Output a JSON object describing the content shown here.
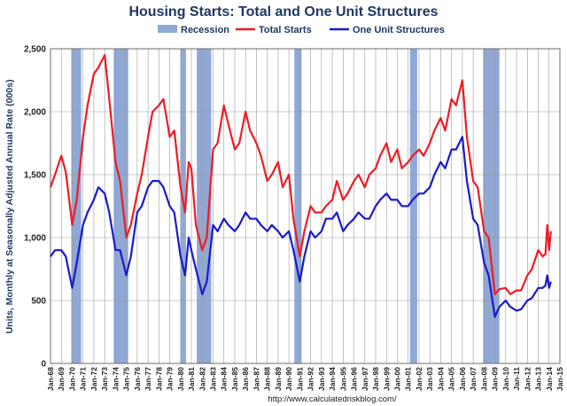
{
  "chart_data": {
    "type": "line",
    "title": "Housing Starts: Total and One Unit Structures",
    "ylabel": "Units, Monthly at Seasonally Adjusted Annual Rate (000s)",
    "xlabel": "",
    "source": "http://www.calculatedriskblog.com/",
    "ylim": [
      0,
      2500
    ],
    "yticks": [
      "0",
      "500",
      "1,000",
      "1,500",
      "2,000",
      "2,500"
    ],
    "xlim": [
      "1968-01",
      "2015-01"
    ],
    "xticks": [
      "Jan-68",
      "Jan-69",
      "Jan-70",
      "Jan-71",
      "Jan-72",
      "Jan-73",
      "Jan-74",
      "Jan-75",
      "Jan-76",
      "Jan-77",
      "Jan-78",
      "Jan-79",
      "Jan-80",
      "Jan-81",
      "Jan-82",
      "Jan-83",
      "Jan-84",
      "Jan-85",
      "Jan-86",
      "Jan-87",
      "Jan-88",
      "Jan-89",
      "Jan-90",
      "Jan-91",
      "Jan-92",
      "Jan-93",
      "Jan-94",
      "Jan-95",
      "Jan-96",
      "Jan-97",
      "Jan-98",
      "Jan-99",
      "Jan-00",
      "Jan-01",
      "Jan-02",
      "Jan-03",
      "Jan-04",
      "Jan-05",
      "Jan-06",
      "Jan-07",
      "Jan-08",
      "Jan-09",
      "Jan-10",
      "Jan-11",
      "Jan-12",
      "Jan-13",
      "Jan-14",
      "Jan-15"
    ],
    "grid": true,
    "legend_position": "top",
    "legend": [
      {
        "label": "Recession",
        "color": "#8fa8d6",
        "kind": "box"
      },
      {
        "label": "Total Starts",
        "color": "#ee1c25",
        "kind": "line"
      },
      {
        "label": "One Unit Structures",
        "color": "#1a1acc",
        "kind": "line"
      }
    ],
    "recessions": [
      {
        "start": "1969-12",
        "end": "1970-11"
      },
      {
        "start": "1973-11",
        "end": "1975-03"
      },
      {
        "start": "1980-01",
        "end": "1980-07"
      },
      {
        "start": "1981-07",
        "end": "1982-11"
      },
      {
        "start": "1990-07",
        "end": "1991-03"
      },
      {
        "start": "2001-03",
        "end": "2001-11"
      },
      {
        "start": "2007-12",
        "end": "2009-06"
      }
    ],
    "series": [
      {
        "name": "Total Starts",
        "color": "#ee1c25",
        "points": [
          [
            "1968-01",
            1400
          ],
          [
            "1968-06",
            1500
          ],
          [
            "1969-01",
            1650
          ],
          [
            "1969-06",
            1520
          ],
          [
            "1970-01",
            1100
          ],
          [
            "1970-06",
            1300
          ],
          [
            "1971-01",
            1800
          ],
          [
            "1971-06",
            2050
          ],
          [
            "1972-01",
            2300
          ],
          [
            "1972-06",
            2350
          ],
          [
            "1973-01",
            2450
          ],
          [
            "1973-06",
            2100
          ],
          [
            "1974-01",
            1600
          ],
          [
            "1974-06",
            1450
          ],
          [
            "1975-01",
            1000
          ],
          [
            "1975-06",
            1100
          ],
          [
            "1976-01",
            1350
          ],
          [
            "1976-06",
            1500
          ],
          [
            "1977-01",
            1800
          ],
          [
            "1977-06",
            2000
          ],
          [
            "1978-01",
            2050
          ],
          [
            "1978-06",
            2100
          ],
          [
            "1979-01",
            1800
          ],
          [
            "1979-06",
            1850
          ],
          [
            "1980-01",
            1400
          ],
          [
            "1980-06",
            1200
          ],
          [
            "1980-10",
            1600
          ],
          [
            "1981-01",
            1550
          ],
          [
            "1981-06",
            1100
          ],
          [
            "1982-01",
            900
          ],
          [
            "1982-06",
            1000
          ],
          [
            "1983-01",
            1700
          ],
          [
            "1983-06",
            1750
          ],
          [
            "1984-01",
            2050
          ],
          [
            "1984-06",
            1900
          ],
          [
            "1985-01",
            1700
          ],
          [
            "1985-06",
            1750
          ],
          [
            "1986-01",
            2000
          ],
          [
            "1986-06",
            1850
          ],
          [
            "1987-01",
            1750
          ],
          [
            "1987-06",
            1650
          ],
          [
            "1988-01",
            1450
          ],
          [
            "1988-06",
            1500
          ],
          [
            "1989-01",
            1600
          ],
          [
            "1989-06",
            1400
          ],
          [
            "1990-01",
            1500
          ],
          [
            "1990-06",
            1150
          ],
          [
            "1991-01",
            850
          ],
          [
            "1991-06",
            1050
          ],
          [
            "1992-01",
            1250
          ],
          [
            "1992-06",
            1200
          ],
          [
            "1993-01",
            1200
          ],
          [
            "1993-06",
            1250
          ],
          [
            "1994-01",
            1300
          ],
          [
            "1994-06",
            1450
          ],
          [
            "1995-01",
            1300
          ],
          [
            "1995-06",
            1350
          ],
          [
            "1996-01",
            1450
          ],
          [
            "1996-06",
            1500
          ],
          [
            "1997-01",
            1400
          ],
          [
            "1997-06",
            1500
          ],
          [
            "1998-01",
            1550
          ],
          [
            "1998-06",
            1650
          ],
          [
            "1999-01",
            1750
          ],
          [
            "1999-06",
            1600
          ],
          [
            "2000-01",
            1700
          ],
          [
            "2000-06",
            1550
          ],
          [
            "2001-01",
            1600
          ],
          [
            "2001-06",
            1650
          ],
          [
            "2002-01",
            1700
          ],
          [
            "2002-06",
            1650
          ],
          [
            "2003-01",
            1750
          ],
          [
            "2003-06",
            1850
          ],
          [
            "2004-01",
            1950
          ],
          [
            "2004-06",
            1850
          ],
          [
            "2005-01",
            2100
          ],
          [
            "2005-06",
            2050
          ],
          [
            "2006-01",
            2250
          ],
          [
            "2006-06",
            1800
          ],
          [
            "2007-01",
            1450
          ],
          [
            "2007-06",
            1400
          ],
          [
            "2008-01",
            1050
          ],
          [
            "2008-06",
            1000
          ],
          [
            "2009-01",
            550
          ],
          [
            "2009-06",
            590
          ],
          [
            "2010-01",
            600
          ],
          [
            "2010-06",
            550
          ],
          [
            "2011-01",
            580
          ],
          [
            "2011-06",
            580
          ],
          [
            "2012-01",
            700
          ],
          [
            "2012-06",
            750
          ],
          [
            "2013-01",
            900
          ],
          [
            "2013-06",
            850
          ],
          [
            "2013-09",
            870
          ],
          [
            "2013-11",
            1100
          ],
          [
            "2014-01",
            900
          ],
          [
            "2014-03",
            1050
          ]
        ]
      },
      {
        "name": "One Unit Structures",
        "color": "#1a1acc",
        "points": [
          [
            "1968-01",
            850
          ],
          [
            "1968-06",
            900
          ],
          [
            "1969-01",
            900
          ],
          [
            "1969-06",
            850
          ],
          [
            "1970-01",
            600
          ],
          [
            "1970-06",
            800
          ],
          [
            "1971-01",
            1100
          ],
          [
            "1971-06",
            1200
          ],
          [
            "1972-01",
            1300
          ],
          [
            "1972-06",
            1400
          ],
          [
            "1973-01",
            1350
          ],
          [
            "1973-06",
            1200
          ],
          [
            "1974-01",
            900
          ],
          [
            "1974-06",
            900
          ],
          [
            "1975-01",
            700
          ],
          [
            "1975-06",
            850
          ],
          [
            "1976-01",
            1200
          ],
          [
            "1976-06",
            1250
          ],
          [
            "1977-01",
            1400
          ],
          [
            "1977-06",
            1450
          ],
          [
            "1978-01",
            1450
          ],
          [
            "1978-06",
            1400
          ],
          [
            "1979-01",
            1250
          ],
          [
            "1979-06",
            1200
          ],
          [
            "1980-01",
            850
          ],
          [
            "1980-06",
            700
          ],
          [
            "1980-10",
            1000
          ],
          [
            "1981-01",
            900
          ],
          [
            "1981-06",
            750
          ],
          [
            "1982-01",
            550
          ],
          [
            "1982-06",
            650
          ],
          [
            "1983-01",
            1100
          ],
          [
            "1983-06",
            1050
          ],
          [
            "1984-01",
            1150
          ],
          [
            "1984-06",
            1100
          ],
          [
            "1985-01",
            1050
          ],
          [
            "1985-06",
            1100
          ],
          [
            "1986-01",
            1200
          ],
          [
            "1986-06",
            1150
          ],
          [
            "1987-01",
            1150
          ],
          [
            "1987-06",
            1100
          ],
          [
            "1988-01",
            1050
          ],
          [
            "1988-06",
            1100
          ],
          [
            "1989-01",
            1050
          ],
          [
            "1989-06",
            1000
          ],
          [
            "1990-01",
            1050
          ],
          [
            "1990-06",
            900
          ],
          [
            "1991-01",
            650
          ],
          [
            "1991-06",
            850
          ],
          [
            "1992-01",
            1050
          ],
          [
            "1992-06",
            1000
          ],
          [
            "1993-01",
            1050
          ],
          [
            "1993-06",
            1150
          ],
          [
            "1994-01",
            1150
          ],
          [
            "1994-06",
            1200
          ],
          [
            "1995-01",
            1050
          ],
          [
            "1995-06",
            1100
          ],
          [
            "1996-01",
            1150
          ],
          [
            "1996-06",
            1200
          ],
          [
            "1997-01",
            1150
          ],
          [
            "1997-06",
            1150
          ],
          [
            "1998-01",
            1250
          ],
          [
            "1998-06",
            1300
          ],
          [
            "1999-01",
            1350
          ],
          [
            "1999-06",
            1300
          ],
          [
            "2000-01",
            1300
          ],
          [
            "2000-06",
            1250
          ],
          [
            "2001-01",
            1250
          ],
          [
            "2001-06",
            1300
          ],
          [
            "2002-01",
            1350
          ],
          [
            "2002-06",
            1350
          ],
          [
            "2003-01",
            1400
          ],
          [
            "2003-06",
            1500
          ],
          [
            "2004-01",
            1600
          ],
          [
            "2004-06",
            1550
          ],
          [
            "2005-01",
            1700
          ],
          [
            "2005-06",
            1700
          ],
          [
            "2006-01",
            1800
          ],
          [
            "2006-06",
            1450
          ],
          [
            "2007-01",
            1150
          ],
          [
            "2007-06",
            1100
          ],
          [
            "2008-01",
            800
          ],
          [
            "2008-06",
            700
          ],
          [
            "2009-01",
            370
          ],
          [
            "2009-06",
            450
          ],
          [
            "2010-01",
            500
          ],
          [
            "2010-06",
            450
          ],
          [
            "2011-01",
            420
          ],
          [
            "2011-06",
            430
          ],
          [
            "2012-01",
            500
          ],
          [
            "2012-06",
            520
          ],
          [
            "2013-01",
            600
          ],
          [
            "2013-06",
            600
          ],
          [
            "2013-09",
            620
          ],
          [
            "2013-11",
            700
          ],
          [
            "2014-01",
            600
          ],
          [
            "2014-03",
            650
          ]
        ]
      }
    ]
  }
}
